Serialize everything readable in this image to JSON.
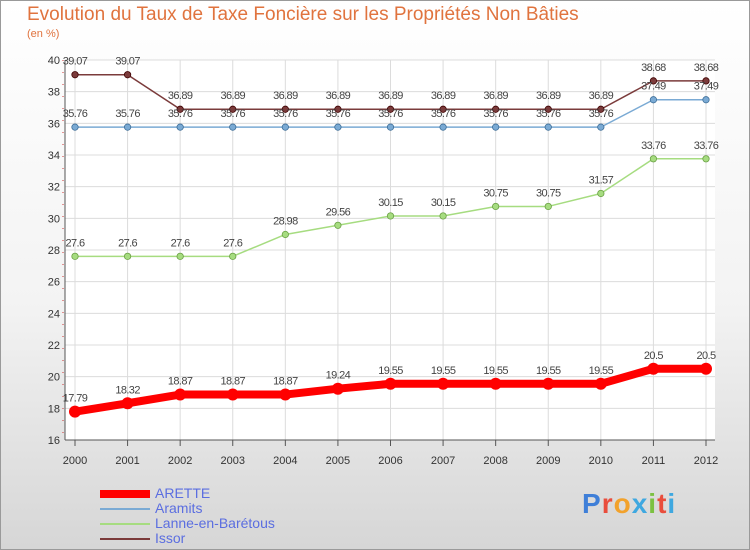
{
  "title": "Evolution du Taux de Taxe Foncière sur les Propriétés Non Bâties",
  "subtitle": "(en %)",
  "logo": {
    "letters": [
      "P",
      "r",
      "o",
      "x",
      "i",
      "t",
      "i"
    ],
    "colors": [
      "#3f7fd8",
      "#e94d3c",
      "#f2a22c",
      "#3fa8e0",
      "#7cc142",
      "#e94d3c",
      "#3fa8e0"
    ]
  },
  "chart_data": {
    "type": "line",
    "title": "Evolution du Taux de Taxe Foncière sur les Propriétés Non Bâties",
    "ylabel": "(en %)",
    "ylim": [
      16,
      40
    ],
    "yticks": [
      16,
      18,
      20,
      22,
      24,
      26,
      28,
      30,
      32,
      34,
      36,
      38,
      40
    ],
    "x": [
      "2000",
      "2001",
      "2002",
      "2003",
      "2004",
      "2005",
      "2006",
      "2007",
      "2008",
      "2009",
      "2010",
      "2011",
      "2012"
    ],
    "grid": true,
    "legend": "bottom-left",
    "series": [
      {
        "name": "ARETTE",
        "color": "#ff0000",
        "values": [
          17.79,
          18.32,
          18.87,
          18.87,
          18.87,
          19.24,
          19.55,
          19.55,
          19.55,
          19.55,
          19.55,
          20.5,
          20.5
        ],
        "labels": [
          "17.79",
          "18.32",
          "18.87",
          "18.87",
          "18.87",
          "19.24",
          "19.55",
          "19.55",
          "19.55",
          "19.55",
          "19.55",
          "20.5",
          "20.5"
        ]
      },
      {
        "name": "Aramits",
        "color": "#7aaad4",
        "values": [
          35.76,
          35.76,
          35.76,
          35.76,
          35.76,
          35.76,
          35.76,
          35.76,
          35.76,
          35.76,
          35.76,
          37.49,
          37.49
        ],
        "labels": [
          "35.76",
          "35.76",
          "35.76",
          "35.76",
          "35.76",
          "35.76",
          "35.76",
          "35.76",
          "35.76",
          "35.76",
          "35.76",
          "37.49",
          "37.49"
        ]
      },
      {
        "name": "Lanne-en-Barétous",
        "color": "#a6dc80",
        "values": [
          27.6,
          27.6,
          27.6,
          27.6,
          28.98,
          29.56,
          30.15,
          30.15,
          30.75,
          30.75,
          31.57,
          33.76,
          33.76
        ],
        "labels": [
          "27.6",
          "27.6",
          "27.6",
          "27.6",
          "28.98",
          "29.56",
          "30.15",
          "30.15",
          "30.75",
          "30.75",
          "31.57",
          "33.76",
          "33.76"
        ]
      },
      {
        "name": "Issor",
        "color": "#7b3b3b",
        "values": [
          39.07,
          39.07,
          36.89,
          36.89,
          36.89,
          36.89,
          36.89,
          36.89,
          36.89,
          36.89,
          36.89,
          38.68,
          38.68
        ],
        "labels": [
          "39.07",
          "39.07",
          "36.89",
          "36.89",
          "36.89",
          "36.89",
          "36.89",
          "36.89",
          "36.89",
          "36.89",
          "36.89",
          "38.68",
          "38.68"
        ]
      }
    ]
  }
}
